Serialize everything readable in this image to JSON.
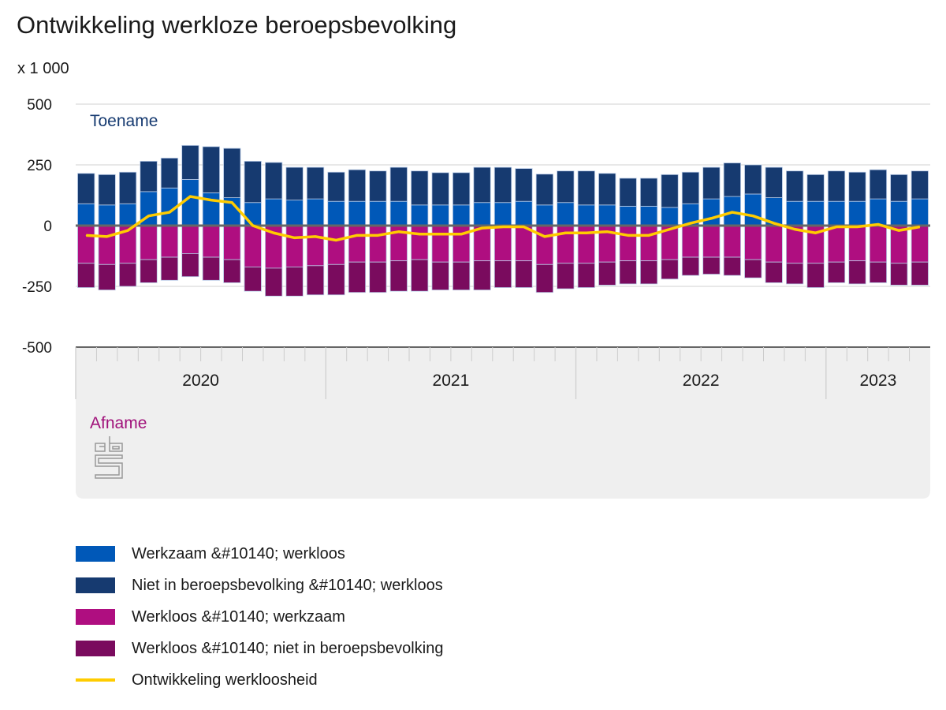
{
  "chart_data": {
    "type": "bar",
    "stacked": true,
    "title": "Ontwikkeling werkloze beroepsbevolking",
    "unit_label": "x 1 000",
    "annotations": {
      "top": "Toename",
      "bottom": "Afname"
    },
    "ylim": [
      -500,
      500
    ],
    "yticks": [
      500,
      250,
      0,
      -250,
      -500
    ],
    "ytick_labels": [
      "500",
      "250",
      "0",
      "-250",
      "-500"
    ],
    "grid": true,
    "legend_position": "bottom",
    "year_groups": [
      {
        "label": "2020",
        "months": 12
      },
      {
        "label": "2021",
        "months": 12
      },
      {
        "label": "2022",
        "months": 12
      },
      {
        "label": "2023",
        "months": 5
      }
    ],
    "series": [
      {
        "name": "Werkzaam &#10140; werkloos",
        "color": "#0058b8",
        "values": [
          90,
          85,
          90,
          140,
          155,
          190,
          135,
          115,
          95,
          110,
          105,
          110,
          100,
          100,
          100,
          100,
          85,
          85,
          85,
          95,
          95,
          100,
          85,
          95,
          85,
          85,
          80,
          80,
          75,
          90,
          110,
          120,
          130,
          115,
          100,
          100,
          100,
          100,
          110,
          100,
          110
        ]
      },
      {
        "name": "Niet in beroepsbevolking &#10140; werkloos",
        "color": "#163a70",
        "values": [
          125,
          125,
          130,
          125,
          123,
          140,
          190,
          203,
          170,
          150,
          135,
          130,
          120,
          130,
          125,
          140,
          140,
          133,
          133,
          145,
          145,
          135,
          127,
          130,
          140,
          130,
          115,
          115,
          135,
          130,
          130,
          138,
          120,
          125,
          125,
          110,
          125,
          120,
          120,
          110,
          115
        ]
      },
      {
        "name": "Werkloos &#10140; werkzaam",
        "color": "#af0e80",
        "values": [
          -155,
          -160,
          -155,
          -140,
          -130,
          -115,
          -130,
          -140,
          -170,
          -175,
          -170,
          -165,
          -160,
          -150,
          -150,
          -145,
          -140,
          -150,
          -150,
          -145,
          -145,
          -145,
          -160,
          -155,
          -155,
          -150,
          -145,
          -145,
          -140,
          -130,
          -130,
          -130,
          -140,
          -150,
          -155,
          -155,
          -150,
          -145,
          -150,
          -155,
          -150
        ]
      },
      {
        "name": "Werkloos &#10140; niet in beroepsbevolking",
        "color": "#7a0b5e",
        "values": [
          -100,
          -105,
          -95,
          -95,
          -95,
          -95,
          -95,
          -95,
          -100,
          -115,
          -120,
          -120,
          -125,
          -125,
          -125,
          -125,
          -130,
          -115,
          -115,
          -120,
          -110,
          -110,
          -115,
          -105,
          -100,
          -95,
          -95,
          -95,
          -80,
          -75,
          -70,
          -75,
          -75,
          -85,
          -85,
          -100,
          -85,
          -95,
          -85,
          -90,
          -95
        ]
      },
      {
        "name": "Ontwikkeling werkloosheid",
        "color": "#ffcc00",
        "type": "line",
        "values": [
          -40,
          -45,
          -20,
          40,
          55,
          120,
          105,
          95,
          0,
          -30,
          -50,
          -45,
          -60,
          -40,
          -40,
          -25,
          -35,
          -35,
          -35,
          -10,
          -5,
          -5,
          -45,
          -30,
          -30,
          -25,
          -40,
          -40,
          -15,
          10,
          30,
          55,
          40,
          10,
          -15,
          -30,
          -5,
          -5,
          5,
          -20,
          -5
        ]
      }
    ]
  }
}
